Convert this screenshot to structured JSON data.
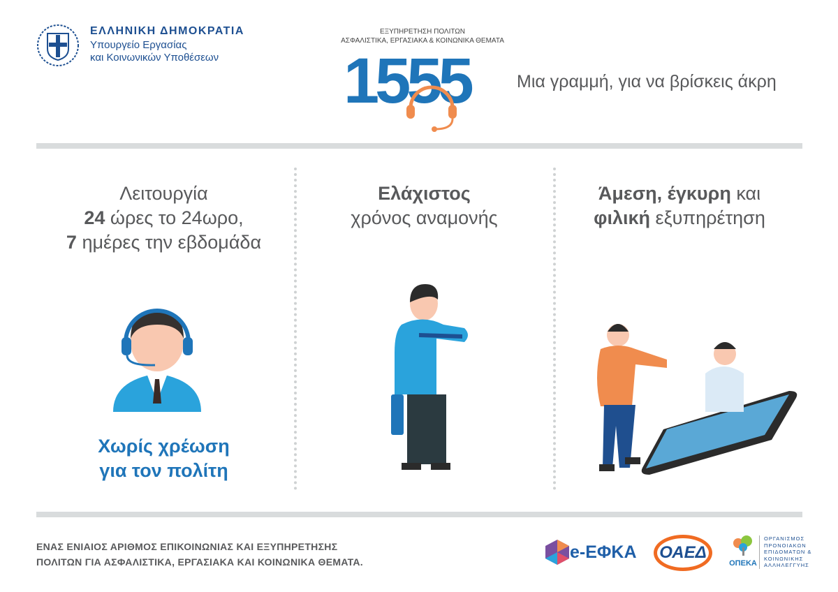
{
  "header": {
    "emblem": "greek-state-emblem",
    "gov_title": "ΕΛΛΗΝΙΚΗ ΔΗΜΟΚΡΑΤΙΑ",
    "ministry_line1": "Υπουργείο Εργασίας",
    "ministry_line2": "και Κοινωνικών Υποθέσεων",
    "service_line1": "ΕΞΥΠΗΡΕΤΗΣΗ ΠΟΛΙΤΩΝ",
    "service_line2": "ΑΣΦΑΛΙΣΤΙΚΑ, ΕΡΓΑΣΙΑΚΑ & ΚΟΙΝΩΝΙΚΑ ΘΕΜΑΤΑ",
    "number": "1555",
    "slogan": "Μια γραμμή, για να βρίσκεις άκρη"
  },
  "columns": [
    {
      "l1": "Λειτουργία",
      "l2_bold": "24",
      "l2": " ώρες το 24ωρο,",
      "l3_bold": "7",
      "l3": " ημέρες την εβδομάδα",
      "note1": "Χωρίς χρέωση",
      "note2": "για τον πολίτη"
    },
    {
      "l1_bold": "Ελάχιστος",
      "l2": "χρόνος αναμονής"
    },
    {
      "l1_bold": "Άμεση, έγκυρη",
      "l1": " και",
      "l2_bold": "φιλική",
      "l2": " εξυπηρέτηση"
    }
  ],
  "footer": {
    "text1": "ΕΝΑΣ ΕΝΙΑΙΟΣ ΑΡΙΘΜΟΣ ΕΠΙΚΟΙΝΩΝΙΑΣ ΚΑΙ ΕΞΥΠΗΡΕΤΗΣΗΣ",
    "text2": "ΠΟΛΙΤΩΝ ΓΙΑ ΑΣΦΑΛΙΣΤΙΚΑ, ΕΡΓΑΣΙΑΚΑ ΚΑΙ ΚΟΙΝΩΝΙΚΑ ΘΕΜΑΤΑ.",
    "logos": {
      "efka": "e-ΕΦΚΑ",
      "oaed": "ΟΑΕΔ",
      "opeka": "ΟΠΕΚΑ",
      "opeka_full": [
        "ΟΡΓΑΝΙΣΜΟΣ",
        "ΠΡΟΝΟΙΑΚΩΝ",
        "ΕΠΙΔΟΜΑΤΩΝ &",
        "ΚΟΙΝΩΝΙΚΗΣ",
        "ΑΛΛΗΛΕΓΓΥΗΣ"
      ]
    }
  },
  "colors": {
    "navy": "#1d4f91",
    "blue": "#1f75b9",
    "light_blue": "#2aa3dc",
    "orange": "#f08c4e",
    "gray_text": "#58595b"
  }
}
